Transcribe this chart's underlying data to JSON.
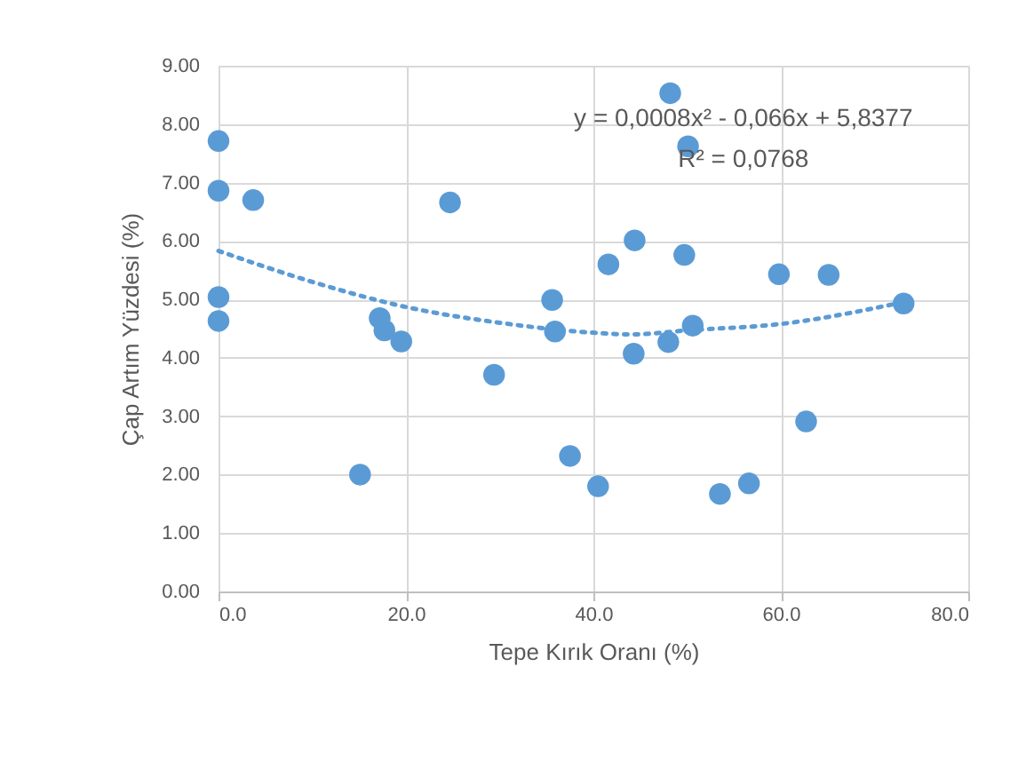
{
  "chart_data": {
    "type": "scatter",
    "xlabel": "Tepe Kırık Oranı (%)",
    "ylabel": "Çap Artım Yüzdesi (%)",
    "annotations": [
      "y = 0,0008x² - 0,066x + 5,8377",
      "R² = 0,0768"
    ],
    "xlim": [
      0,
      80
    ],
    "xticks": [
      {
        "value": 0,
        "label": "0.0"
      },
      {
        "value": 20,
        "label": "20.0"
      },
      {
        "value": 40,
        "label": "40.0"
      },
      {
        "value": 60,
        "label": "60.0"
      },
      {
        "value": 80,
        "label": "80.0"
      }
    ],
    "ylim": [
      0,
      9
    ],
    "yticks": [
      {
        "value": 0,
        "label": "0.00"
      },
      {
        "value": 1,
        "label": "1.00"
      },
      {
        "value": 2,
        "label": "2.00"
      },
      {
        "value": 3,
        "label": "3.00"
      },
      {
        "value": 4,
        "label": "4.00"
      },
      {
        "value": 5,
        "label": "5.00"
      },
      {
        "value": 6,
        "label": "6.00"
      },
      {
        "value": 7,
        "label": "7.00"
      },
      {
        "value": 8,
        "label": "8.00"
      },
      {
        "value": 9,
        "label": "9.00"
      }
    ],
    "grid": true,
    "marker": "circle",
    "series": [
      {
        "type": "scatter",
        "color": "#5b9bd5",
        "x": [
          0,
          0,
          3.7,
          0,
          0,
          24.7,
          17.2,
          17.7,
          19.5,
          29.4,
          15.1,
          35.6,
          35.9,
          48.2,
          50.1,
          41.6,
          44.4,
          49.7,
          59.8,
          65.1,
          73.1,
          50.6,
          44.3,
          48.0,
          37.5,
          40.5,
          53.5,
          56.6,
          62.7
        ],
        "values": [
          7.71,
          6.86,
          6.7,
          5.04,
          4.63,
          6.66,
          4.68,
          4.47,
          4.28,
          3.71,
          2.0,
          4.99,
          4.45,
          8.53,
          7.62,
          5.6,
          6.01,
          5.76,
          5.43,
          5.42,
          4.93,
          4.55,
          4.07,
          4.27,
          2.32,
          1.8,
          1.67,
          1.85,
          2.91
        ]
      },
      {
        "type": "line",
        "color": "#5b9bd5",
        "line_style": "dotted",
        "marker": "none",
        "x": [
          0,
          10,
          20,
          30,
          40,
          44,
          50,
          60,
          73
        ],
        "values": [
          5.83,
          5.3,
          4.87,
          4.6,
          4.43,
          4.4,
          4.47,
          4.58,
          4.95
        ]
      }
    ]
  }
}
